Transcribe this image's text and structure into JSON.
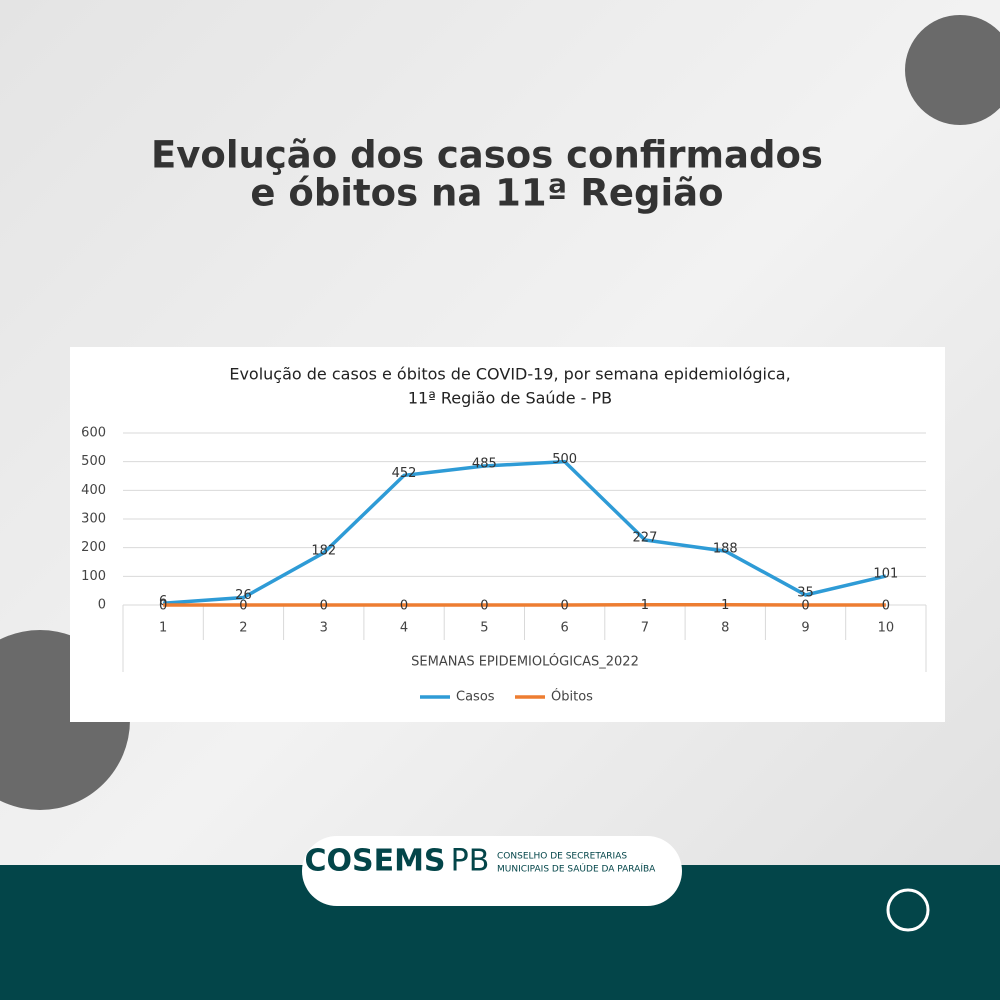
{
  "header": {
    "title": [
      "Evolução dos casos confirmados",
      "e óbitos na 11ª Região"
    ]
  },
  "chart_data": {
    "type": "line",
    "title": [
      "Evolução de casos e óbitos de COVID-19, por semana epidemiológica,",
      "11ª Região de Saúde - PB"
    ],
    "x_label": "SEMANAS EPIDEMIOLÓGICAS_2022",
    "categories": [
      "1",
      "2",
      "3",
      "4",
      "5",
      "6",
      "7",
      "8",
      "9",
      "10"
    ],
    "series": [
      {
        "name": "Casos",
        "color": "#2e9bd6",
        "values": [
          6,
          26,
          182,
          452,
          485,
          500,
          227,
          188,
          35,
          101
        ]
      },
      {
        "name": "Óbitos",
        "color": "#ed7d31",
        "values": [
          0,
          0,
          0,
          0,
          0,
          0,
          1,
          1,
          0,
          0
        ]
      }
    ],
    "ylim": [
      0,
      600
    ],
    "yticks": [
      0,
      100,
      200,
      300,
      400,
      500,
      600
    ],
    "grid": true,
    "legend": "bottom"
  },
  "footer": {
    "logo": "COSEMS",
    "logo_suffix": "PB",
    "org": [
      "CONSELHO DE SECRETARIAS",
      "MUNICIPAIS DE SAÚDE DA PARAÍBA"
    ]
  }
}
